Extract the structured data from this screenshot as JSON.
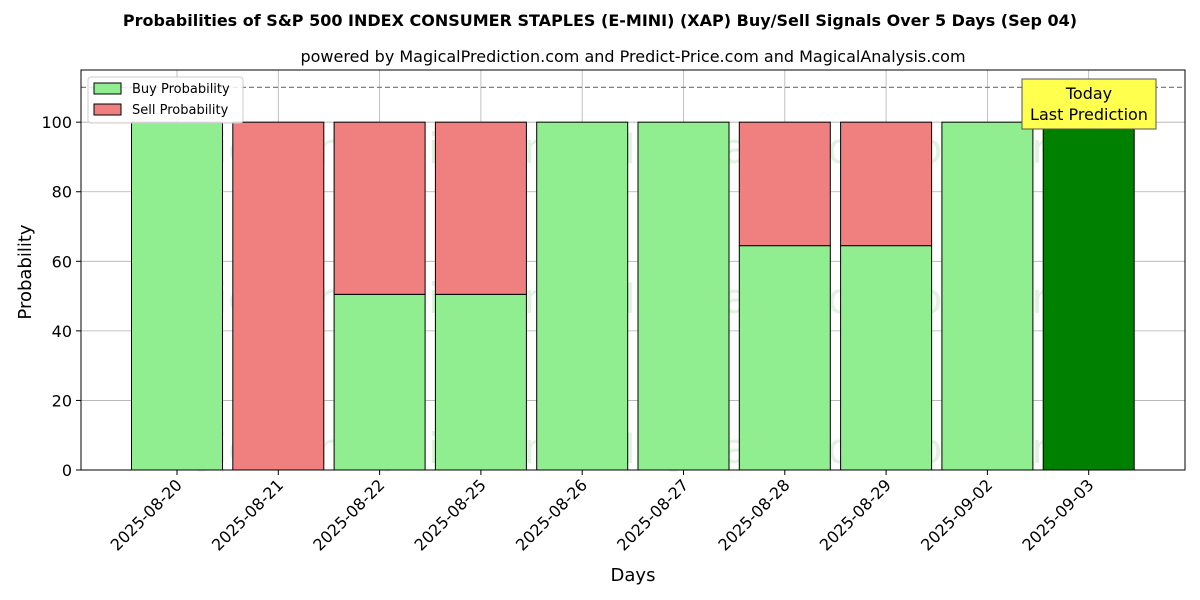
{
  "chart_data": {
    "type": "bar",
    "stacked": true,
    "title": "Probabilities of S&P 500 INDEX CONSUMER STAPLES (E-MINI) (XAP) Buy/Sell Signals Over 5 Days (Sep 04)",
    "subtitle": "powered by MagicalPrediction.com and Predict-Price.com and MagicalAnalysis.com",
    "xlabel": "Days",
    "ylabel": "Probability",
    "ylim": [
      0,
      115
    ],
    "yticks": [
      0,
      20,
      40,
      60,
      80,
      100
    ],
    "grid": true,
    "legend_placement": "top-left",
    "categories": [
      "2025-08-20",
      "2025-08-21",
      "2025-08-22",
      "2025-08-25",
      "2025-08-26",
      "2025-08-27",
      "2025-08-28",
      "2025-08-29",
      "2025-09-02",
      "2025-09-03"
    ],
    "series": [
      {
        "name": "Buy Probability",
        "color": "#90ee90",
        "values": [
          100,
          0,
          50.5,
          50.5,
          100,
          100,
          64.5,
          64.5,
          100,
          100
        ]
      },
      {
        "name": "Sell Probability",
        "color": "#f08080",
        "values": [
          0,
          100,
          49.5,
          49.5,
          0,
          0,
          35.5,
          35.5,
          0,
          0
        ]
      }
    ],
    "highlight": {
      "index": 9,
      "color": "#008000"
    },
    "reference_line": {
      "y": 110,
      "style": "dashed",
      "color": "#808080"
    },
    "annotation": {
      "lines": [
        "Today",
        "Last Prediction"
      ],
      "background": "#ffff4d"
    },
    "watermarks": [
      "MagicalAnalysis.com",
      "MagicalPrediction.com"
    ]
  }
}
